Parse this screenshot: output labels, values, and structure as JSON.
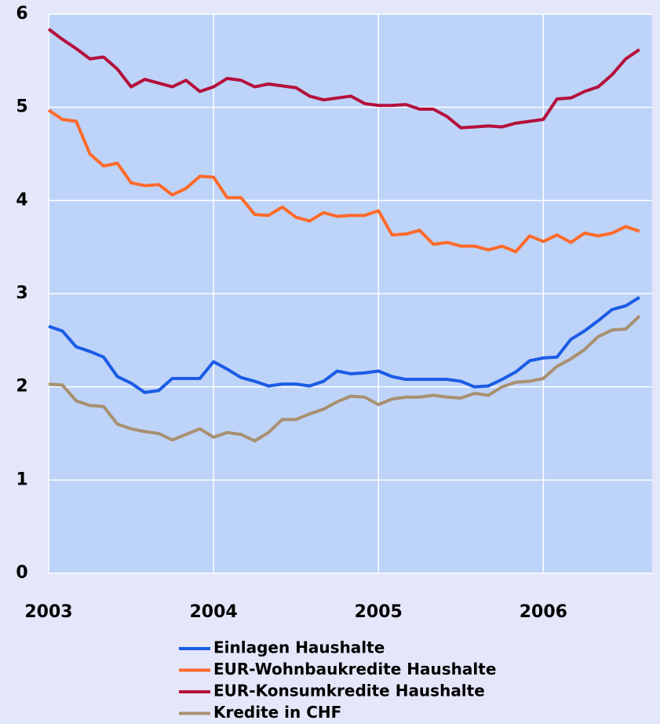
{
  "chart_data": {
    "type": "line",
    "x": [
      2003,
      2003.083,
      2003.167,
      2003.25,
      2003.333,
      2003.417,
      2003.5,
      2003.583,
      2003.667,
      2003.75,
      2003.833,
      2003.917,
      2004,
      2004.083,
      2004.167,
      2004.25,
      2004.333,
      2004.417,
      2004.5,
      2004.583,
      2004.667,
      2004.75,
      2004.833,
      2004.917,
      2005,
      2005.083,
      2005.167,
      2005.25,
      2005.333,
      2005.417,
      2005.5,
      2005.583,
      2005.667,
      2005.75,
      2005.833,
      2005.917,
      2006,
      2006.083,
      2006.167,
      2006.25,
      2006.333,
      2006.417,
      2006.5,
      2006.583
    ],
    "xlim": [
      2003,
      2006.66
    ],
    "xticks": [
      2003,
      2004,
      2005,
      2006
    ],
    "ylim": [
      0,
      6
    ],
    "yticks": [
      0,
      1,
      2,
      3,
      4,
      5,
      6
    ],
    "grid": true,
    "series": [
      {
        "name": "Einlagen Haushalte",
        "color": "#1a5ce6",
        "values": [
          2.65,
          2.6,
          2.43,
          2.38,
          2.32,
          2.11,
          2.04,
          1.94,
          1.96,
          2.09,
          2.09,
          2.09,
          2.27,
          2.19,
          2.1,
          2.06,
          2.01,
          2.03,
          2.03,
          2.01,
          2.06,
          2.17,
          2.14,
          2.15,
          2.17,
          2.11,
          2.08,
          2.08,
          2.08,
          2.08,
          2.06,
          2.0,
          2.01,
          2.08,
          2.16,
          2.28,
          2.31,
          2.32,
          2.51,
          2.6,
          2.71,
          2.83,
          2.87,
          2.96
        ]
      },
      {
        "name": "EUR-Wohnbaukredite Haushalte",
        "color": "#ff6a2a",
        "values": [
          4.97,
          4.87,
          4.85,
          4.5,
          4.37,
          4.4,
          4.19,
          4.16,
          4.17,
          4.06,
          4.13,
          4.26,
          4.25,
          4.03,
          4.03,
          3.85,
          3.84,
          3.93,
          3.82,
          3.78,
          3.87,
          3.83,
          3.84,
          3.84,
          3.89,
          3.63,
          3.64,
          3.68,
          3.53,
          3.55,
          3.51,
          3.51,
          3.47,
          3.51,
          3.45,
          3.62,
          3.56,
          3.63,
          3.55,
          3.65,
          3.62,
          3.65,
          3.72,
          3.67
        ]
      },
      {
        "name": "EUR-Konsumkredite Haushalte",
        "color": "#b4103c",
        "values": [
          5.84,
          5.73,
          5.63,
          5.52,
          5.54,
          5.41,
          5.22,
          5.3,
          5.26,
          5.22,
          5.29,
          5.17,
          5.22,
          5.31,
          5.29,
          5.22,
          5.25,
          5.23,
          5.21,
          5.12,
          5.08,
          5.1,
          5.12,
          5.04,
          5.02,
          5.02,
          5.03,
          4.98,
          4.98,
          4.9,
          4.78,
          4.79,
          4.8,
          4.79,
          4.83,
          4.85,
          4.87,
          5.09,
          5.1,
          5.17,
          5.22,
          5.35,
          5.52,
          5.62
        ]
      },
      {
        "name": "Kredite in CHF",
        "color": "#a89070",
        "values": [
          2.03,
          2.02,
          1.85,
          1.8,
          1.79,
          1.6,
          1.55,
          1.52,
          1.5,
          1.43,
          1.49,
          1.55,
          1.46,
          1.51,
          1.49,
          1.42,
          1.51,
          1.65,
          1.65,
          1.71,
          1.76,
          1.84,
          1.9,
          1.89,
          1.81,
          1.87,
          1.89,
          1.89,
          1.91,
          1.89,
          1.88,
          1.93,
          1.91,
          2.0,
          2.05,
          2.06,
          2.09,
          2.22,
          2.3,
          2.4,
          2.54,
          2.61,
          2.62,
          2.76
        ]
      }
    ]
  }
}
